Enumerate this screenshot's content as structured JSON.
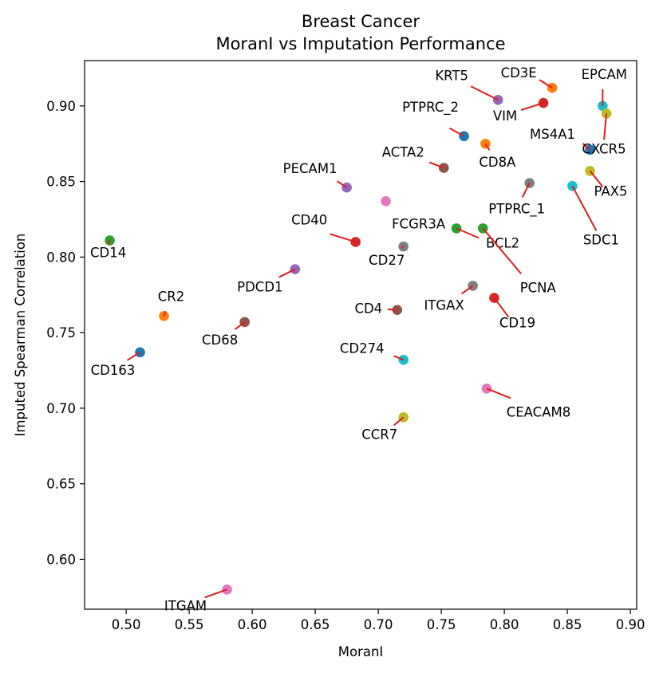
{
  "chart_data": {
    "type": "scatter",
    "title": "Breast Cancer",
    "subtitle": "MoranI vs Imputation Performance",
    "xlabel": "MoranI",
    "ylabel": "Imputed Spearman Correlation",
    "xlim": [
      0.467,
      0.905
    ],
    "ylim": [
      0.567,
      0.93
    ],
    "xticks": [
      0.5,
      0.55,
      0.6,
      0.65,
      0.7,
      0.75,
      0.8,
      0.85,
      0.9
    ],
    "xtick_labels": [
      "0.50",
      "0.55",
      "0.60",
      "0.65",
      "0.70",
      "0.75",
      "0.80",
      "0.85",
      "0.90"
    ],
    "yticks": [
      0.6,
      0.65,
      0.7,
      0.75,
      0.8,
      0.85,
      0.9
    ],
    "ytick_labels": [
      "0.60",
      "0.65",
      "0.70",
      "0.75",
      "0.80",
      "0.85",
      "0.90"
    ],
    "grid": false,
    "points": [
      {
        "label": "CD14",
        "x": 0.487,
        "y": 0.811,
        "color": "#2ca02c"
      },
      {
        "label": "CD163",
        "x": 0.511,
        "y": 0.737,
        "color": "#1f77b4"
      },
      {
        "label": "CR2",
        "x": 0.53,
        "y": 0.761,
        "color": "#ff7f0e"
      },
      {
        "label": "ITGAM",
        "x": 0.58,
        "y": 0.58,
        "color": "#e377c2"
      },
      {
        "label": "CD68",
        "x": 0.594,
        "y": 0.757,
        "color": "#8c564b"
      },
      {
        "label": "PDCD1",
        "x": 0.634,
        "y": 0.792,
        "color": "#9467bd"
      },
      {
        "label": "PECAM1",
        "x": 0.675,
        "y": 0.846,
        "color": "#9467bd"
      },
      {
        "label": "CD40",
        "x": 0.682,
        "y": 0.81,
        "color": "#d62728"
      },
      {
        "label": "FCGR3A",
        "x": 0.706,
        "y": 0.837,
        "color": "#e377c2"
      },
      {
        "label": "CD4",
        "x": 0.715,
        "y": 0.765,
        "color": "#8c564b"
      },
      {
        "label": "CD27",
        "x": 0.72,
        "y": 0.807,
        "color": "#7f7f7f"
      },
      {
        "label": "CD274",
        "x": 0.72,
        "y": 0.732,
        "color": "#17becf"
      },
      {
        "label": "CCR7",
        "x": 0.72,
        "y": 0.694,
        "color": "#bcbd22"
      },
      {
        "label": "ACTA2",
        "x": 0.752,
        "y": 0.859,
        "color": "#8c564b"
      },
      {
        "label": "BCL2",
        "x": 0.762,
        "y": 0.819,
        "color": "#2ca02c"
      },
      {
        "label": "PTPRC_2",
        "x": 0.768,
        "y": 0.88,
        "color": "#1f77b4"
      },
      {
        "label": "ITGAX",
        "x": 0.775,
        "y": 0.781,
        "color": "#7f7f7f"
      },
      {
        "label": "PCNA",
        "x": 0.783,
        "y": 0.819,
        "color": "#2ca02c"
      },
      {
        "label": "CD8A",
        "x": 0.785,
        "y": 0.875,
        "color": "#ff7f0e"
      },
      {
        "label": "CEACAM8",
        "x": 0.786,
        "y": 0.713,
        "color": "#e377c2"
      },
      {
        "label": "CD19",
        "x": 0.792,
        "y": 0.773,
        "color": "#d62728"
      },
      {
        "label": "KRT5",
        "x": 0.795,
        "y": 0.904,
        "color": "#9467bd"
      },
      {
        "label": "PTPRC_1",
        "x": 0.82,
        "y": 0.849,
        "color": "#7f7f7f"
      },
      {
        "label": "VIM",
        "x": 0.831,
        "y": 0.902,
        "color": "#d62728"
      },
      {
        "label": "CD3E",
        "x": 0.838,
        "y": 0.912,
        "color": "#ff7f0e"
      },
      {
        "label": "SDC1",
        "x": 0.854,
        "y": 0.847,
        "color": "#17becf"
      },
      {
        "label": "PAX5",
        "x": 0.868,
        "y": 0.857,
        "color": "#bcbd22"
      },
      {
        "label": "MS4A1",
        "x": 0.868,
        "y": 0.871,
        "color": "#1f77b4"
      },
      {
        "label": "EPCAM",
        "x": 0.878,
        "y": 0.9,
        "color": "#17becf"
      },
      {
        "label": "CXCR5",
        "x": 0.881,
        "y": 0.895,
        "color": "#bcbd22"
      }
    ]
  }
}
